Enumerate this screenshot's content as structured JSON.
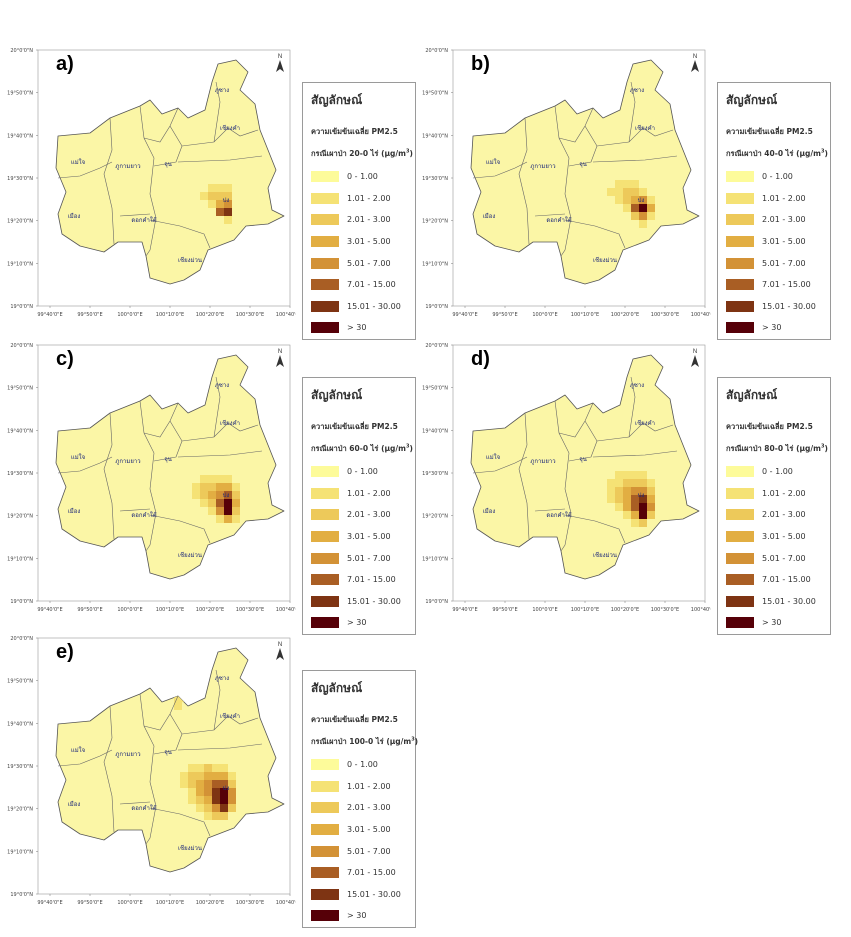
{
  "legend": {
    "title": "สัญลักษณ์",
    "subtitle": "ความเข้มข้นเฉลี่ย PM2.5",
    "unit_text": "(µg/m",
    "unit_sup": "3",
    "unit_close": ")",
    "classes": [
      {
        "label": "0 - 1.00",
        "color": "#fdfb9a"
      },
      {
        "label": "1.01 - 2.00",
        "color": "#f5e275"
      },
      {
        "label": "2.01 - 3.00",
        "color": "#edc95a"
      },
      {
        "label": "3.01 - 5.00",
        "color": "#e2ae42"
      },
      {
        "label": "5.01 - 7.00",
        "color": "#d39236"
      },
      {
        "label": "7.01 - 15.00",
        "color": "#a95e24"
      },
      {
        "label": "15.01 - 30.00",
        "color": "#7e3413"
      },
      {
        "label": "> 30",
        "color": "#560008"
      }
    ]
  },
  "map": {
    "north": "N",
    "base_color": "#fbf6a6",
    "x_ticks": [
      "99°40'0\"E",
      "99°50'0\"E",
      "100°0'0\"E",
      "100°10'0\"E",
      "100°20'0\"E",
      "100°30'0\"E",
      "100°40'0\"E"
    ],
    "y_ticks": [
      "20°0'0\"N",
      "19°50'0\"N",
      "19°40'0\"N",
      "19°30'0\"N",
      "19°20'0\"N",
      "19°10'0\"N",
      "19°0'0\"N"
    ],
    "districts": [
      "ภูซาง",
      "เชียงคำ",
      "แม่ใจ",
      "ภูกามยาว",
      "จุน",
      "เมือง",
      "ปง",
      "ดอกคำใต้",
      "เชียงม่วน"
    ]
  },
  "panels": [
    {
      "id": "a",
      "label": "a)",
      "scenario": "กรณีเผาป่า 20-0 ไร่",
      "shows_labels": true
    },
    {
      "id": "b",
      "label": "b)",
      "scenario": "กรณีเผาป่า 40-0 ไร่",
      "shows_labels": true
    },
    {
      "id": "c",
      "label": "c)",
      "scenario": "กรณีเผาป่า 60-0 ไร่",
      "shows_labels": true
    },
    {
      "id": "d",
      "label": "d)",
      "scenario": "กรณีเผาป่า 80-0 ไร่",
      "shows_labels": true
    },
    {
      "id": "e",
      "label": "e)",
      "scenario": "กรณีเผาป่า 100-0 ไร่",
      "shows_labels": true
    }
  ],
  "pm25_grids": {
    "a": [
      [
        0,
        0,
        0,
        0,
        1,
        1,
        1,
        0,
        0
      ],
      [
        0,
        0,
        0,
        1,
        2,
        2,
        2,
        0,
        0
      ],
      [
        0,
        0,
        0,
        0,
        1,
        3,
        4,
        0,
        0
      ],
      [
        0,
        0,
        0,
        0,
        0,
        5,
        6,
        0,
        0
      ],
      [
        0,
        0,
        0,
        0,
        0,
        0,
        1,
        0,
        0
      ]
    ],
    "b": [
      [
        0,
        0,
        0,
        1,
        1,
        1,
        0,
        0,
        0
      ],
      [
        0,
        0,
        1,
        1,
        2,
        2,
        1,
        0,
        0
      ],
      [
        0,
        0,
        0,
        1,
        2,
        3,
        4,
        1,
        0
      ],
      [
        0,
        0,
        0,
        0,
        1,
        5,
        7,
        3,
        0
      ],
      [
        0,
        0,
        0,
        0,
        0,
        2,
        4,
        1,
        0
      ],
      [
        0,
        0,
        0,
        0,
        0,
        0,
        1,
        0,
        0
      ]
    ],
    "c": [
      [
        0,
        0,
        0,
        1,
        1,
        1,
        1,
        0,
        0
      ],
      [
        0,
        0,
        1,
        2,
        2,
        3,
        3,
        1,
        0
      ],
      [
        0,
        0,
        1,
        2,
        3,
        4,
        5,
        2,
        0
      ],
      [
        0,
        0,
        0,
        1,
        2,
        5,
        7,
        3,
        0
      ],
      [
        0,
        0,
        0,
        0,
        1,
        4,
        7,
        2,
        0
      ],
      [
        0,
        0,
        0,
        0,
        0,
        1,
        3,
        1,
        0
      ]
    ],
    "d": [
      [
        0,
        0,
        0,
        1,
        1,
        1,
        1,
        0,
        0
      ],
      [
        0,
        0,
        1,
        1,
        2,
        2,
        2,
        1,
        0
      ],
      [
        0,
        0,
        1,
        2,
        3,
        4,
        4,
        2,
        0
      ],
      [
        0,
        0,
        1,
        2,
        3,
        5,
        6,
        3,
        0
      ],
      [
        0,
        0,
        0,
        1,
        3,
        5,
        7,
        4,
        0
      ],
      [
        0,
        0,
        0,
        0,
        1,
        3,
        7,
        2,
        0
      ],
      [
        0,
        0,
        0,
        0,
        0,
        1,
        2,
        0,
        0
      ]
    ],
    "e": [
      [
        0,
        0,
        1,
        1,
        2,
        1,
        1,
        0,
        0
      ],
      [
        0,
        1,
        2,
        2,
        3,
        3,
        3,
        1,
        0
      ],
      [
        0,
        1,
        2,
        3,
        4,
        5,
        5,
        2,
        0
      ],
      [
        0,
        0,
        1,
        3,
        4,
        6,
        7,
        4,
        0
      ],
      [
        0,
        0,
        1,
        2,
        3,
        6,
        7,
        4,
        0
      ],
      [
        0,
        0,
        0,
        1,
        2,
        4,
        6,
        2,
        0
      ],
      [
        0,
        0,
        0,
        0,
        1,
        2,
        2,
        0,
        0
      ]
    ]
  },
  "north_band_e": [
    [
      0,
      1,
      1,
      0
    ],
    [
      1,
      1,
      1,
      1
    ],
    [
      0,
      1,
      1,
      0
    ],
    [
      0,
      1,
      0,
      0
    ]
  ]
}
